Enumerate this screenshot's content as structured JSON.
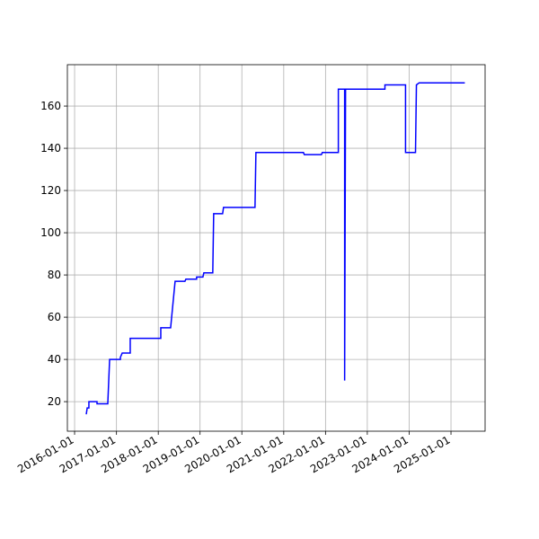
{
  "chart_data": {
    "type": "line",
    "x": [
      "2016-04-12",
      "2016-04-20",
      "2016-05-05",
      "2016-05-05",
      "2016-07-15",
      "2016-07-15",
      "2016-10-17",
      "2016-11-02",
      "2017-02-04",
      "2017-02-04",
      "2017-02-20",
      "2017-05-01",
      "2017-05-01",
      "2018-01-23",
      "2018-01-23",
      "2018-04-19",
      "2018-05-28",
      "2018-08-22",
      "2018-08-30",
      "2018-12-02",
      "2018-12-02",
      "2019-01-26",
      "2019-02-03",
      "2019-04-22",
      "2019-04-30",
      "2019-07-17",
      "2019-07-25",
      "2020-04-25",
      "2020-05-03",
      "2021-06-22",
      "2021-06-30",
      "2021-11-26",
      "2021-12-04",
      "2022-04-23",
      "2022-04-23",
      "2022-06-17",
      "2022-06-17",
      "2022-06-25",
      "2023-06-04",
      "2023-06-04",
      "2023-12-01",
      "2023-12-01",
      "2024-02-26",
      "2024-03-05",
      "2024-03-29",
      "2025-05-02"
    ],
    "series": [
      {
        "color": "blue",
        "values": [
          14,
          17,
          17,
          20,
          20,
          19,
          19,
          40,
          40,
          41,
          43,
          43,
          50,
          50,
          55,
          55,
          77,
          77,
          78,
          78,
          79,
          79,
          81,
          81,
          109,
          109,
          112,
          112,
          138,
          138,
          137,
          137,
          138,
          138,
          168,
          168,
          30,
          168,
          168,
          170,
          170,
          138,
          138,
          170,
          171,
          171
        ]
      }
    ],
    "xlim": [
      "2015-10-30",
      "2025-10-26"
    ],
    "xticks": [
      "2016-01-01",
      "2017-01-01",
      "2018-01-01",
      "2019-01-01",
      "2020-01-01",
      "2021-01-01",
      "2022-01-01",
      "2023-01-01",
      "2024-01-01",
      "2025-01-01"
    ],
    "ylim": [
      6,
      179.6
    ],
    "yticks": [
      20,
      40,
      60,
      80,
      100,
      120,
      140,
      160
    ],
    "grid": true
  }
}
